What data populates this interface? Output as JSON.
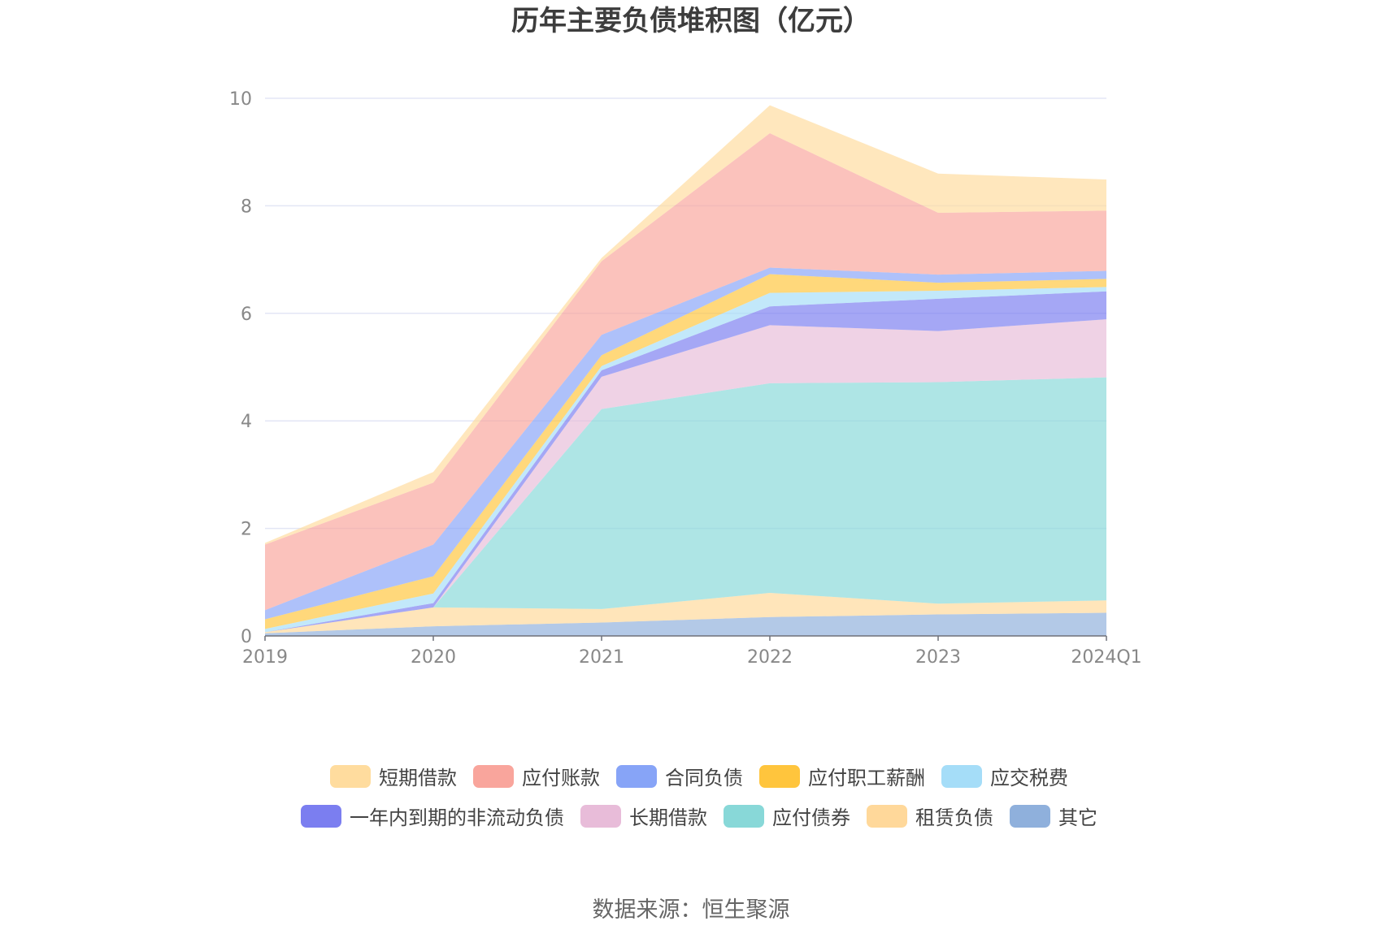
{
  "chart_data": {
    "type": "area",
    "stacked": true,
    "title": "历年主要负债堆积图（亿元）",
    "x": [
      "2019",
      "2020",
      "2021",
      "2022",
      "2023",
      "2024Q1"
    ],
    "ylim": [
      0,
      10
    ],
    "yticks": [
      0,
      2,
      4,
      6,
      8,
      10
    ],
    "grid": true,
    "legend_position": "bottom",
    "series": [
      {
        "name": "其它",
        "color": "#8fb0dc",
        "values": [
          0.05,
          0.18,
          0.25,
          0.35,
          0.4,
          0.43
        ]
      },
      {
        "name": "租赁负债",
        "color": "#ffd89a",
        "values": [
          0.02,
          0.35,
          0.25,
          0.45,
          0.2,
          0.23
        ]
      },
      {
        "name": "应付债券",
        "color": "#88d8d8",
        "values": [
          0.0,
          0.0,
          3.72,
          3.9,
          4.12,
          4.15
        ]
      },
      {
        "name": "长期借款",
        "color": "#e8bcd9",
        "values": [
          0.0,
          0.0,
          0.6,
          1.08,
          0.95,
          1.08
        ]
      },
      {
        "name": "一年内到期的非流动负债",
        "color": "#7b7ef0",
        "values": [
          0.0,
          0.08,
          0.12,
          0.35,
          0.6,
          0.52
        ]
      },
      {
        "name": "应交税费",
        "color": "#a5ddf8",
        "values": [
          0.06,
          0.18,
          0.08,
          0.25,
          0.15,
          0.08
        ]
      },
      {
        "name": "应付职工薪酬",
        "color": "#ffc53d",
        "values": [
          0.18,
          0.32,
          0.2,
          0.35,
          0.15,
          0.15
        ]
      },
      {
        "name": "合同负债",
        "color": "#87a4f7",
        "values": [
          0.17,
          0.59,
          0.38,
          0.12,
          0.15,
          0.15
        ]
      },
      {
        "name": "应付账款",
        "color": "#f9a59c",
        "values": [
          1.22,
          1.15,
          1.37,
          2.5,
          1.15,
          1.12
        ]
      },
      {
        "name": "短期借款",
        "color": "#ffdc9e",
        "values": [
          0.03,
          0.2,
          0.06,
          0.52,
          0.73,
          0.58
        ]
      }
    ],
    "legend_order": [
      "短期借款",
      "应付账款",
      "合同负债",
      "应付职工薪酬",
      "应交税费",
      "一年内到期的非流动负债",
      "长期借款",
      "应付债券",
      "租赁负债",
      "其它"
    ]
  },
  "source_text": "数据来源：恒生聚源"
}
